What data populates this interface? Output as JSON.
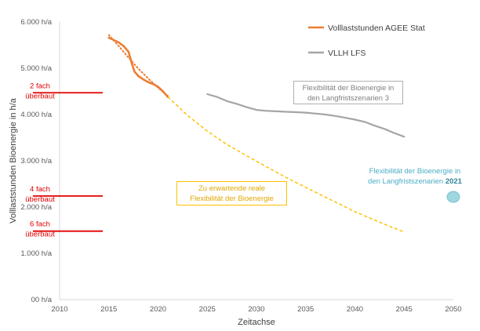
{
  "chart_data": {
    "type": "line",
    "xlabel": "Zeitachse",
    "ylabel": "Volllaststunden Bioenergie in h/a",
    "xlim": [
      2010,
      2050
    ],
    "ylim": [
      0,
      6000
    ],
    "x_ticks": [
      "2010",
      "2015",
      "2020",
      "2025",
      "2030",
      "2035",
      "2040",
      "2045",
      "2050"
    ],
    "y_ticks": [
      "00 h/a",
      "1.000 h/a",
      "2.000 h/a",
      "3.000 h/a",
      "4.000 h/a",
      "5.000 h/a",
      "6.000 h/a"
    ],
    "grid": false,
    "legend_position": "top-right",
    "legend": [
      {
        "label": "Volllaststunden AGEE Stat",
        "color": "#ed7d31"
      },
      {
        "label": "VLLH LFS",
        "color": "#a5a5a5"
      }
    ],
    "series": [
      {
        "name": "Volllaststunden AGEE Stat",
        "color": "#ed7d31",
        "style": "solid",
        "x": [
          2015,
          2015.5,
          2016,
          2016.5,
          2017,
          2017.3,
          2017.6,
          2018,
          2018.5,
          2019,
          2019.5,
          2020,
          2020.5,
          2021
        ],
        "y": [
          5660,
          5610,
          5560,
          5480,
          5360,
          5130,
          4930,
          4830,
          4760,
          4700,
          4660,
          4600,
          4500,
          4380
        ]
      },
      {
        "color": "#ed7d31",
        "style": "dotted",
        "x": [
          2015,
          2016,
          2017,
          2018,
          2019,
          2020,
          2021
        ],
        "y": [
          5720,
          5480,
          5230,
          4990,
          4780,
          4580,
          4400
        ]
      },
      {
        "name": "VLLH LFS",
        "color": "#a5a5a5",
        "style": "solid",
        "x": [
          2025,
          2026,
          2027,
          2028,
          2029,
          2030,
          2031,
          2032,
          2033,
          2034,
          2035,
          2036,
          2037,
          2038,
          2039,
          2040,
          2041,
          2042,
          2043,
          2044,
          2045
        ],
        "y": [
          4440,
          4380,
          4290,
          4230,
          4160,
          4100,
          4080,
          4070,
          4060,
          4050,
          4040,
          4020,
          4000,
          3970,
          3930,
          3890,
          3840,
          3760,
          3690,
          3600,
          3520
        ]
      },
      {
        "color": "#ffc000",
        "style": "dashed",
        "x": [
          2021,
          2023,
          2025,
          2027,
          2030,
          2033,
          2036,
          2040,
          2043,
          2045
        ],
        "y": [
          4380,
          3980,
          3640,
          3350,
          2990,
          2640,
          2320,
          1900,
          1630,
          1460
        ]
      }
    ],
    "reference_lines": [
      {
        "label_line1": "2 fach",
        "label_line2": "überbaut",
        "y": 4470,
        "color": "#e00000"
      },
      {
        "label_line1": "4 fach",
        "label_line2": "überbaut",
        "y": 2240,
        "color": "#e00000"
      },
      {
        "label_line1": "6 fach",
        "label_line2": "überbaut",
        "y": 1480,
        "color": "#e00000"
      }
    ],
    "marker_2050": {
      "x": 2050,
      "y": 2220,
      "color": "#9fd7e0"
    },
    "annotations": {
      "gray_line1": "Flexibilität der Bioenergie in",
      "gray_line2": "den Langfristszenarien 3",
      "yellow_line1": "Zu erwartende reale",
      "yellow_line2": "Flexibilität der Bioenergie",
      "teal_line1": "Flexibilität der Bioenergie in",
      "teal_line2": "den Langfristszenarien ",
      "teal_bold": "2021"
    }
  }
}
